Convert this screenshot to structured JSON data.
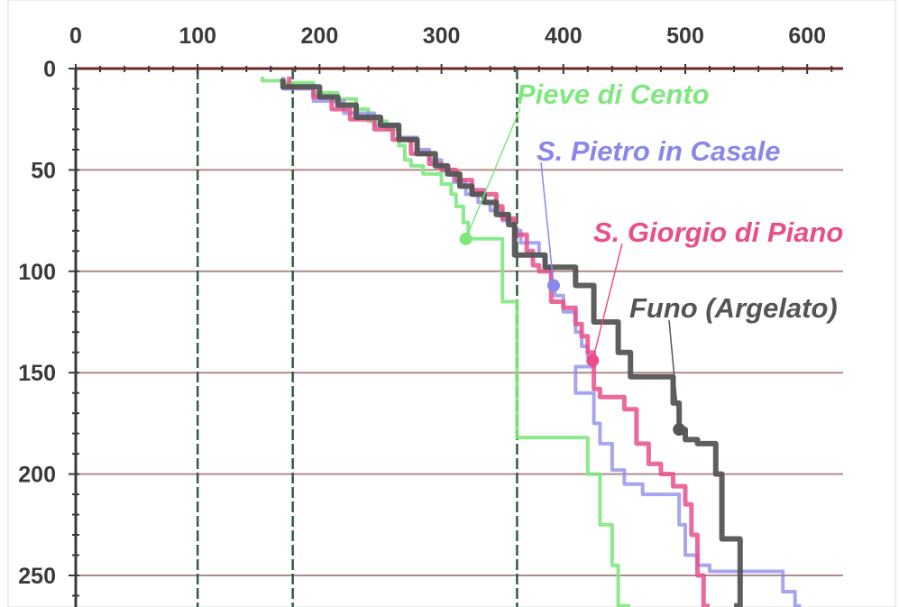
{
  "chart_data": {
    "type": "line",
    "title": "",
    "xlabel": "",
    "ylabel": "",
    "x_axis_position": "top",
    "y_axis_inverted": true,
    "xlim": [
      0,
      630
    ],
    "ylim": [
      0,
      265
    ],
    "x_ticks": [
      0,
      100,
      200,
      300,
      400,
      500,
      600
    ],
    "y_ticks": [
      0,
      50,
      100,
      150,
      200,
      250
    ],
    "grid": "horizontal lines at y ticks",
    "reference_lines_x": [
      100,
      178,
      362
    ],
    "series": [
      {
        "name": "Pieve di Cento",
        "color": "#7ee87e",
        "label_point": [
          320,
          84
        ],
        "points": [
          [
            153,
            4
          ],
          [
            170,
            6
          ],
          [
            195,
            7
          ],
          [
            215,
            12
          ],
          [
            230,
            15
          ],
          [
            240,
            20
          ],
          [
            255,
            26
          ],
          [
            265,
            30
          ],
          [
            270,
            38
          ],
          [
            275,
            45
          ],
          [
            285,
            48
          ],
          [
            300,
            52
          ],
          [
            308,
            57
          ],
          [
            312,
            62
          ],
          [
            318,
            68
          ],
          [
            322,
            76
          ],
          [
            322,
            84
          ],
          [
            340,
            84
          ],
          [
            350,
            84
          ],
          [
            350,
            115
          ],
          [
            362,
            115
          ],
          [
            362,
            182
          ],
          [
            375,
            182
          ],
          [
            420,
            182
          ],
          [
            430,
            200
          ],
          [
            440,
            225
          ],
          [
            445,
            245
          ],
          [
            455,
            265
          ]
        ]
      },
      {
        "name": "S. Pietro in Casale",
        "color": "#8a87ea",
        "label_point": [
          392,
          107
        ],
        "points": [
          [
            170,
            4
          ],
          [
            175,
            10
          ],
          [
            195,
            10
          ],
          [
            220,
            16
          ],
          [
            245,
            22
          ],
          [
            265,
            28
          ],
          [
            280,
            34
          ],
          [
            290,
            40
          ],
          [
            300,
            45
          ],
          [
            310,
            50
          ],
          [
            320,
            56
          ],
          [
            330,
            62
          ],
          [
            340,
            66
          ],
          [
            350,
            70
          ],
          [
            360,
            75
          ],
          [
            365,
            80
          ],
          [
            370,
            86
          ],
          [
            380,
            86
          ],
          [
            385,
            92
          ],
          [
            390,
            98
          ],
          [
            393,
            106
          ],
          [
            400,
            112
          ],
          [
            410,
            120
          ],
          [
            415,
            130
          ],
          [
            420,
            137
          ],
          [
            425,
            142
          ],
          [
            410,
            147
          ],
          [
            410,
            155
          ],
          [
            425,
            160
          ],
          [
            430,
            175
          ],
          [
            440,
            185
          ],
          [
            450,
            198
          ],
          [
            465,
            205
          ],
          [
            495,
            210
          ],
          [
            500,
            225
          ],
          [
            510,
            240
          ],
          [
            520,
            245
          ],
          [
            540,
            248
          ],
          [
            580,
            248
          ],
          [
            590,
            258
          ],
          [
            595,
            265
          ]
        ]
      },
      {
        "name": "S. Giorgio di Piano",
        "color": "#e84f8a",
        "label_point": [
          424,
          144
        ],
        "points": [
          [
            175,
            4
          ],
          [
            195,
            9
          ],
          [
            210,
            14
          ],
          [
            225,
            20
          ],
          [
            245,
            25
          ],
          [
            260,
            30
          ],
          [
            275,
            35
          ],
          [
            290,
            42
          ],
          [
            300,
            47
          ],
          [
            312,
            50
          ],
          [
            325,
            55
          ],
          [
            335,
            60
          ],
          [
            345,
            62
          ],
          [
            350,
            68
          ],
          [
            360,
            74
          ],
          [
            370,
            82
          ],
          [
            375,
            90
          ],
          [
            380,
            97
          ],
          [
            390,
            100
          ],
          [
            400,
            115
          ],
          [
            410,
            118
          ],
          [
            415,
            126
          ],
          [
            420,
            132
          ],
          [
            425,
            140
          ],
          [
            430,
            158
          ],
          [
            440,
            162
          ],
          [
            450,
            162
          ],
          [
            460,
            168
          ],
          [
            470,
            185
          ],
          [
            480,
            195
          ],
          [
            490,
            200
          ],
          [
            500,
            206
          ],
          [
            505,
            215
          ],
          [
            510,
            230
          ],
          [
            515,
            250
          ],
          [
            520,
            265
          ]
        ]
      },
      {
        "name": "Funo (Argelato)",
        "color": "#555555",
        "label_point": [
          495,
          178
        ],
        "points": [
          [
            170,
            5
          ],
          [
            180,
            9
          ],
          [
            200,
            9
          ],
          [
            215,
            14
          ],
          [
            230,
            18
          ],
          [
            250,
            24
          ],
          [
            265,
            28
          ],
          [
            280,
            35
          ],
          [
            295,
            42
          ],
          [
            305,
            48
          ],
          [
            315,
            52
          ],
          [
            325,
            58
          ],
          [
            335,
            62
          ],
          [
            345,
            66
          ],
          [
            355,
            72
          ],
          [
            360,
            77
          ],
          [
            360,
            92
          ],
          [
            385,
            92
          ],
          [
            390,
            98
          ],
          [
            410,
            98
          ],
          [
            410,
            107
          ],
          [
            425,
            107
          ],
          [
            430,
            125
          ],
          [
            445,
            125
          ],
          [
            455,
            140
          ],
          [
            460,
            152
          ],
          [
            490,
            152
          ],
          [
            495,
            165
          ],
          [
            500,
            178
          ],
          [
            510,
            183
          ],
          [
            525,
            185
          ],
          [
            530,
            200
          ],
          [
            530,
            232
          ],
          [
            545,
            232
          ],
          [
            545,
            250
          ],
          [
            540,
            265
          ]
        ]
      }
    ],
    "labels": [
      {
        "text": "Pieve di Cento",
        "series": 0
      },
      {
        "text": "S. Pietro in Casale",
        "series": 1
      },
      {
        "text": "S. Giorgio di Piano",
        "series": 2
      },
      {
        "text": "Funo (Argelato)",
        "series": 3
      }
    ]
  }
}
